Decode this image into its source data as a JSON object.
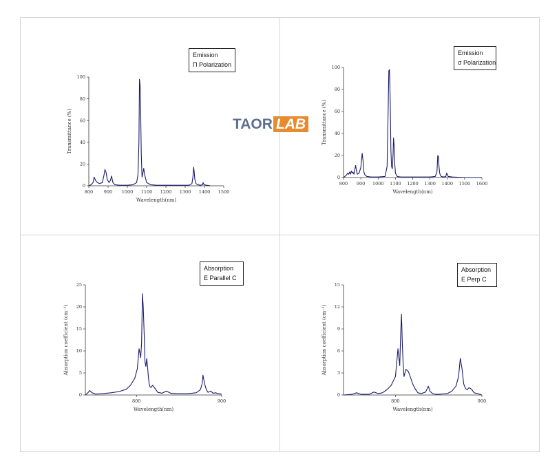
{
  "watermark": {
    "part1": "TAOR",
    "part2": "LAB"
  },
  "colors": {
    "line": "#1a1a6e",
    "axis": "#333333",
    "frame": "#d4d4d4",
    "watermark_text": "#5d6f8d",
    "watermark_box": "#e88a2e"
  },
  "chart_data": [
    {
      "type": "line",
      "legend": [
        "Emission",
        "Π Polarization"
      ],
      "xlabel": "Wavelength(nm)",
      "ylabel": "Transmittance (%)",
      "xlim": [
        800,
        1500
      ],
      "ylim": [
        0,
        100
      ],
      "xticks": [
        800,
        900,
        1000,
        1100,
        1200,
        1300,
        1400,
        1500
      ],
      "yticks": [
        0,
        20,
        40,
        60,
        80,
        100
      ],
      "series": [
        {
          "x": [
            800,
            812,
            822,
            828,
            835,
            845,
            855,
            870,
            878,
            884,
            890,
            895,
            905,
            912,
            918,
            925,
            935,
            960,
            1000,
            1030,
            1048,
            1055,
            1060,
            1063,
            1066,
            1069,
            1072,
            1076,
            1081,
            1085,
            1090,
            1100,
            1120,
            1150,
            1200,
            1260,
            1320,
            1335,
            1340,
            1344,
            1346,
            1350,
            1356,
            1365,
            1380,
            1390,
            1393,
            1398,
            1410,
            1430
          ],
          "y": [
            0,
            1,
            3,
            8,
            5,
            3,
            2,
            3,
            9,
            15,
            12,
            6,
            3,
            5,
            9,
            3,
            1,
            0.5,
            0.5,
            1,
            3,
            10,
            40,
            98,
            92,
            70,
            30,
            8,
            12,
            16,
            10,
            3,
            1,
            0.5,
            0.5,
            0.5,
            0.5,
            2,
            8,
            17,
            14,
            6,
            2,
            1,
            0.5,
            1,
            3,
            1,
            0.5,
            0
          ]
        }
      ]
    },
    {
      "type": "line",
      "legend": [
        "Emission",
        "σ Polarization"
      ],
      "xlabel": "Wavelength(nm)",
      "ylabel": "Transmittance (%)",
      "xlim": [
        800,
        1600
      ],
      "ylim": [
        0,
        100
      ],
      "xticks": [
        800,
        900,
        1000,
        1100,
        1200,
        1300,
        1400,
        1500,
        1600
      ],
      "yticks": [
        0,
        20,
        40,
        60,
        80,
        100
      ],
      "series": [
        {
          "x": [
            800,
            815,
            825,
            830,
            835,
            840,
            845,
            850,
            855,
            860,
            866,
            870,
            875,
            880,
            890,
            900,
            908,
            913,
            918,
            925,
            935,
            960,
            1000,
            1040,
            1052,
            1058,
            1062,
            1066,
            1070,
            1074,
            1078,
            1082,
            1086,
            1089,
            1092,
            1095,
            1100,
            1110,
            1130,
            1200,
            1300,
            1330,
            1340,
            1345,
            1349,
            1352,
            1356,
            1360,
            1365,
            1380,
            1392,
            1396,
            1400,
            1405,
            1430,
            1500,
            1600
          ],
          "y": [
            0,
            2,
            4,
            3,
            5,
            3,
            6,
            4,
            5,
            3,
            8,
            11,
            6,
            3,
            4,
            9,
            22,
            15,
            5,
            2,
            1,
            0.5,
            0.5,
            1,
            10,
            60,
            97,
            98,
            70,
            25,
            10,
            8,
            20,
            36,
            30,
            15,
            4,
            1,
            0.5,
            0.5,
            0.5,
            1,
            5,
            20,
            19,
            10,
            4,
            2,
            1,
            0.5,
            1,
            4,
            3,
            1,
            0.5,
            0,
            0
          ]
        }
      ]
    },
    {
      "type": "line",
      "legend": [
        "Absorption",
        "E Parallel C"
      ],
      "xlabel": "Wavelength(nm)",
      "ylabel": "Absorption coefficient (cm⁻¹)",
      "xlim": [
        740,
        900
      ],
      "ylim": [
        0,
        25
      ],
      "xticks": [
        800,
        900
      ],
      "yticks": [
        0,
        5,
        10,
        15,
        20,
        25
      ],
      "series": [
        {
          "x": [
            740,
            743,
            745,
            748,
            752,
            760,
            770,
            780,
            788,
            793,
            798,
            801,
            803,
            805,
            806,
            807,
            808,
            809,
            810,
            811,
            812,
            813,
            814,
            815,
            816,
            817,
            819,
            822,
            825,
            830,
            835,
            840,
            845,
            850,
            860,
            870,
            875,
            877,
            878,
            880,
            882,
            884,
            887,
            890,
            893,
            896,
            900
          ],
          "y": [
            0,
            0.5,
            1,
            0.5,
            0.2,
            0.3,
            0.5,
            0.8,
            1.3,
            2.2,
            3.8,
            6,
            10.5,
            8.5,
            12,
            23,
            20,
            14,
            7.5,
            6.5,
            8.3,
            6.5,
            4,
            2.4,
            1.8,
            1.7,
            2.2,
            1.4,
            0.6,
            0.4,
            0.9,
            0.4,
            0.3,
            0.3,
            0.3,
            0.5,
            1.2,
            2.5,
            4.5,
            2.5,
            1.2,
            0.6,
            0.9,
            0.4,
            0.5,
            0.3,
            0.2
          ]
        }
      ]
    },
    {
      "type": "line",
      "legend": [
        "Absorption",
        "E Perp  C"
      ],
      "xlabel": "Wavelength(nm)",
      "ylabel": "Absorption coefficient (cm⁻¹)",
      "xlim": [
        740,
        900
      ],
      "ylim": [
        0,
        15
      ],
      "xticks": [
        800,
        900
      ],
      "yticks": [
        0,
        3,
        6,
        9,
        12,
        15
      ],
      "series": [
        {
          "x": [
            740,
            750,
            755,
            760,
            770,
            775,
            780,
            785,
            790,
            795,
            800,
            803,
            805,
            806,
            807,
            808,
            809,
            810,
            812,
            815,
            818,
            820,
            823,
            826,
            830,
            835,
            838,
            840,
            843,
            846,
            850,
            860,
            865,
            870,
            873,
            875,
            877,
            879,
            881,
            883,
            885,
            888,
            891,
            895,
            900
          ],
          "y": [
            0,
            0.1,
            0.3,
            0.1,
            0.1,
            0.4,
            0.2,
            0.3,
            0.7,
            1.3,
            2.5,
            6.3,
            4,
            8,
            11,
            7,
            4,
            2.5,
            3.5,
            3.2,
            2.2,
            1.5,
            0.8,
            0.3,
            0.2,
            0.4,
            1.2,
            0.5,
            0.2,
            0.1,
            0.1,
            0.2,
            0.5,
            1.2,
            2.5,
            5,
            3.6,
            1.5,
            0.9,
            0.7,
            1,
            0.8,
            0.3,
            0.2,
            0
          ]
        }
      ]
    }
  ]
}
